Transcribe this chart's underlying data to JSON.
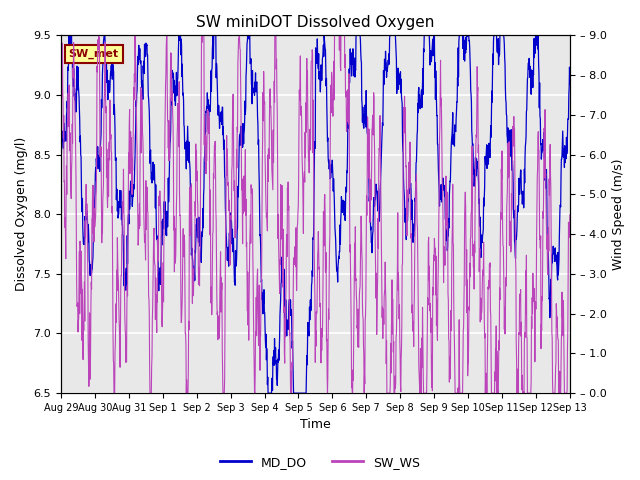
{
  "title": "SW miniDOT Dissolved Oxygen",
  "xlabel": "Time",
  "ylabel_left": "Dissolved Oxygen (mg/l)",
  "ylabel_right": "Wind Speed (m/s)",
  "annotation_text": "SW_met",
  "annotation_color": "#8B0000",
  "annotation_bg": "#FFFF99",
  "annotation_border": "#8B0000",
  "ylim_left": [
    6.5,
    9.5
  ],
  "ylim_right": [
    0.0,
    9.0
  ],
  "yticks_left": [
    6.5,
    7.0,
    7.5,
    8.0,
    8.5,
    9.0,
    9.5
  ],
  "yticks_right": [
    0.0,
    1.0,
    2.0,
    3.0,
    4.0,
    5.0,
    6.0,
    7.0,
    8.0,
    9.0
  ],
  "line_color_DO": "#0000CC",
  "line_color_WS": "#BB44BB",
  "legend_labels": [
    "MD_DO",
    "SW_WS"
  ],
  "bg_color": "#E8E8E8",
  "grid_color": "white",
  "xtick_labels": [
    "Aug 29",
    "Aug 30",
    "Aug 31",
    "Sep 1",
    "Sep 2",
    "Sep 3",
    "Sep 4",
    "Sep 5",
    "Sep 6",
    "Sep 7",
    "Sep 8",
    "Sep 9",
    "Sep 10",
    "Sep 11",
    "Sep 12",
    "Sep 13"
  ],
  "xtick_positions": [
    0,
    1,
    2,
    3,
    4,
    5,
    6,
    7,
    8,
    9,
    10,
    11,
    12,
    13,
    14,
    15
  ]
}
